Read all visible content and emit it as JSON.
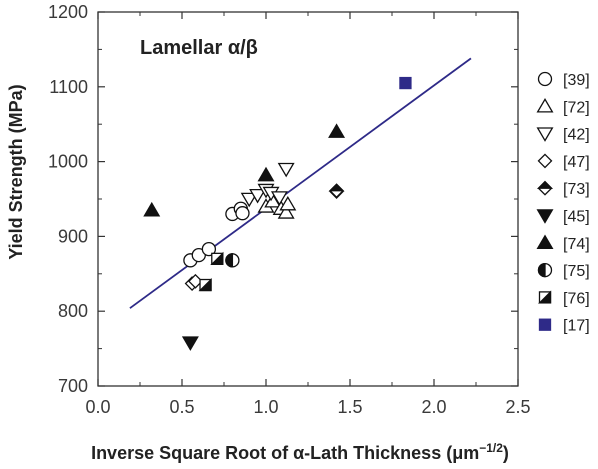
{
  "chart_data": {
    "type": "scatter",
    "title": "",
    "annotation": "Lamellar α/β",
    "xlabel": "Inverse Square Root of α-Lath Thickness (μm",
    "xlabel_sup": "−1/2",
    "xlabel_end": ")",
    "ylabel": "Yield Strength (MPa)",
    "xlim": [
      0,
      2.5
    ],
    "ylim": [
      700,
      1200
    ],
    "xticks": [
      0,
      0.5,
      1,
      1.5,
      2,
      2.5
    ],
    "xtick_labels": [
      "0.0",
      "0.5",
      "1.0",
      "1.5",
      "2.0",
      "2.5"
    ],
    "yticks": [
      700,
      800,
      900,
      1000,
      1100,
      1200
    ],
    "ytick_labels": [
      "700",
      "800",
      "900",
      "1000",
      "1100",
      "1200"
    ],
    "legend_position": "right",
    "series": [
      {
        "name": "[39]",
        "marker": "circle",
        "points": [
          [
            0.55,
            868
          ],
          [
            0.6,
            875
          ],
          [
            0.66,
            883
          ],
          [
            0.8,
            930
          ],
          [
            0.85,
            937
          ],
          [
            0.86,
            931
          ]
        ]
      },
      {
        "name": "[72]",
        "marker": "triangle-up-open",
        "points": [
          [
            1.0,
            940
          ],
          [
            1.04,
            947
          ],
          [
            1.09,
            937
          ],
          [
            1.12,
            932
          ],
          [
            1.13,
            943
          ]
        ]
      },
      {
        "name": "[42]",
        "marker": "triangle-down-open",
        "points": [
          [
            0.9,
            950
          ],
          [
            0.95,
            955
          ],
          [
            1.0,
            962
          ],
          [
            1.03,
            958
          ],
          [
            1.08,
            952
          ],
          [
            1.12,
            990
          ]
        ]
      },
      {
        "name": "[47]",
        "marker": "diamond-open",
        "points": [
          [
            0.56,
            837
          ],
          [
            0.58,
            840
          ],
          [
            1.42,
            960
          ]
        ]
      },
      {
        "name": "[73]",
        "marker": "diamond-half",
        "points": [
          [
            1.42,
            961
          ]
        ]
      },
      {
        "name": "[45]",
        "marker": "triangle-down-filled",
        "points": [
          [
            0.55,
            758
          ]
        ]
      },
      {
        "name": "[74]",
        "marker": "triangle-up-filled",
        "points": [
          [
            0.32,
            935
          ],
          [
            1.0,
            982
          ],
          [
            1.42,
            1040
          ]
        ]
      },
      {
        "name": "[75]",
        "marker": "circle-half",
        "points": [
          [
            0.8,
            868
          ]
        ]
      },
      {
        "name": "[76]",
        "marker": "square-half",
        "points": [
          [
            0.64,
            835
          ],
          [
            0.71,
            870
          ]
        ]
      },
      {
        "name": "[17]",
        "marker": "square-filled",
        "points": [
          [
            1.83,
            1105
          ]
        ]
      }
    ],
    "fit_line": {
      "x": [
        0.19,
        2.22
      ],
      "y": [
        804,
        1138
      ]
    }
  },
  "colors": {
    "fit_line": "#2e2a88",
    "highlight": "#2e2a88",
    "marker": "#111111",
    "axis": "#333333"
  }
}
